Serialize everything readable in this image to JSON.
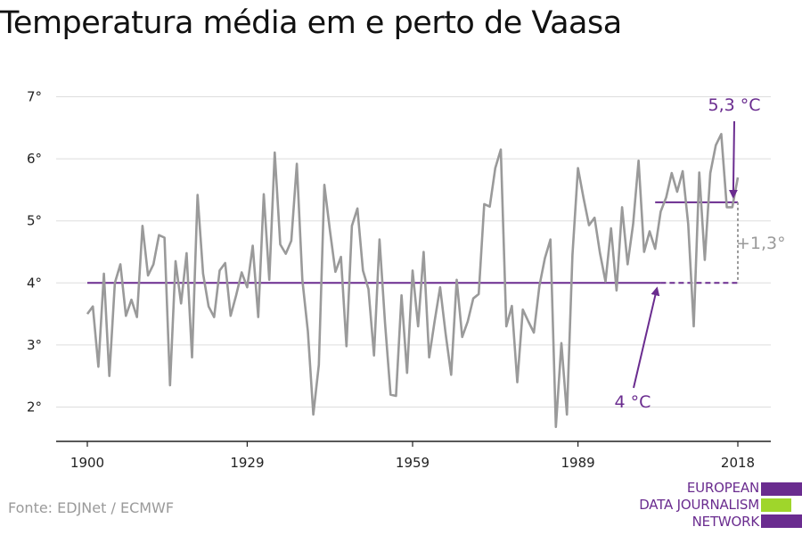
{
  "title": "Temperatura média em e perto de Vaasa",
  "source": "Fonte: EDJNet / ECMWF",
  "logo": {
    "lines": [
      "EUROPEAN",
      "DATA JOURNALISM",
      "NETWORK"
    ],
    "colors": {
      "purple": "#6a2c8f",
      "green": "#9fd62b"
    }
  },
  "colors": {
    "series": "#9a9a9a",
    "accent": "#6a2c8f",
    "grid": "#dddddd",
    "axis": "#222222"
  },
  "chart_data": {
    "type": "line",
    "title": "Temperatura média em e perto de Vaasa",
    "xlabel": "",
    "ylabel": "",
    "xlim": [
      1900,
      2018
    ],
    "ylim": [
      1.5,
      7.2
    ],
    "grid": true,
    "x_ticks": [
      1900,
      1929,
      1959,
      1989,
      2018
    ],
    "x_tick_labels": [
      "1900",
      "1929",
      "1959",
      "1989",
      "2018"
    ],
    "y_ticks": [
      2,
      3,
      4,
      5,
      6,
      7
    ],
    "y_tick_labels": [
      "2°",
      "3°",
      "4°",
      "5°",
      "6°",
      "7°"
    ],
    "series": [
      {
        "x": [
          1900,
          1901,
          1902,
          1903,
          1904,
          1905,
          1906,
          1907,
          1908,
          1909,
          1910,
          1911,
          1912,
          1913,
          1914,
          1915,
          1916,
          1917,
          1918,
          1919,
          1920,
          1921,
          1922,
          1923,
          1924,
          1925,
          1926,
          1927,
          1928,
          1929,
          1930,
          1931,
          1932,
          1933,
          1934,
          1935,
          1936,
          1937,
          1938,
          1939,
          1940,
          1941,
          1942,
          1943,
          1944,
          1945,
          1946,
          1947,
          1948,
          1949,
          1950,
          1951,
          1952,
          1953,
          1954,
          1955,
          1956,
          1957,
          1958,
          1959,
          1960,
          1961,
          1962,
          1963,
          1964,
          1965,
          1966,
          1967,
          1968,
          1969,
          1970,
          1971,
          1972,
          1973,
          1974,
          1975,
          1976,
          1977,
          1978,
          1979,
          1980,
          1981,
          1982,
          1983,
          1984,
          1985,
          1986,
          1987,
          1988,
          1989,
          1990,
          1991,
          1992,
          1993,
          1994,
          1995,
          1996,
          1997,
          1998,
          1999,
          2000,
          2001,
          2002,
          2003,
          2004,
          2005,
          2006,
          2007,
          2008,
          2009,
          2010,
          2011,
          2012,
          2013,
          2014,
          2015,
          2016,
          2017,
          2018
        ],
        "values": [
          3.5,
          3.62,
          2.65,
          4.15,
          2.5,
          4.0,
          4.3,
          3.47,
          3.73,
          3.45,
          4.92,
          4.12,
          4.3,
          4.77,
          4.73,
          2.35,
          4.35,
          3.67,
          4.48,
          2.8,
          5.42,
          4.15,
          3.62,
          3.45,
          4.2,
          4.32,
          3.47,
          3.8,
          4.17,
          3.93,
          4.6,
          3.45,
          5.43,
          4.05,
          6.1,
          4.62,
          4.47,
          4.68,
          5.92,
          4.05,
          3.22,
          1.88,
          2.68,
          5.58,
          4.85,
          4.18,
          4.42,
          2.98,
          4.92,
          5.2,
          4.2,
          3.9,
          2.83,
          4.7,
          3.35,
          2.2,
          2.18,
          3.8,
          2.55,
          4.2,
          3.3,
          4.5,
          2.8,
          3.38,
          3.93,
          3.18,
          2.52,
          4.05,
          3.13,
          3.38,
          3.75,
          3.82,
          5.27,
          5.23,
          5.85,
          6.15,
          3.3,
          3.63,
          2.4,
          3.57,
          3.38,
          3.2,
          3.95,
          4.4,
          4.7,
          1.68,
          3.03,
          1.88,
          4.45,
          5.85,
          5.37,
          4.93,
          5.05,
          4.48,
          4.02,
          4.88,
          3.88,
          5.22,
          4.3,
          4.95,
          5.97,
          4.5,
          4.83,
          4.55,
          5.15,
          5.38,
          5.77,
          5.47,
          5.8,
          4.95,
          3.3,
          5.78,
          4.37,
          5.77,
          6.22,
          6.4,
          5.22,
          5.22,
          5.7
        ]
      }
    ],
    "reference_lines": [
      {
        "y": 4.0,
        "from": 1900,
        "to": 2018,
        "dashed_from": 2004
      },
      {
        "y": 5.3,
        "from": 2003,
        "to": 2018
      }
    ],
    "annotations": [
      {
        "text": "5,3 °C",
        "x": 2017,
        "y": 5.3
      },
      {
        "text": "4 °C",
        "x": 2003,
        "y": 4.0
      },
      {
        "text": "+1,3°",
        "x": 2018,
        "y": 4.65
      }
    ]
  }
}
